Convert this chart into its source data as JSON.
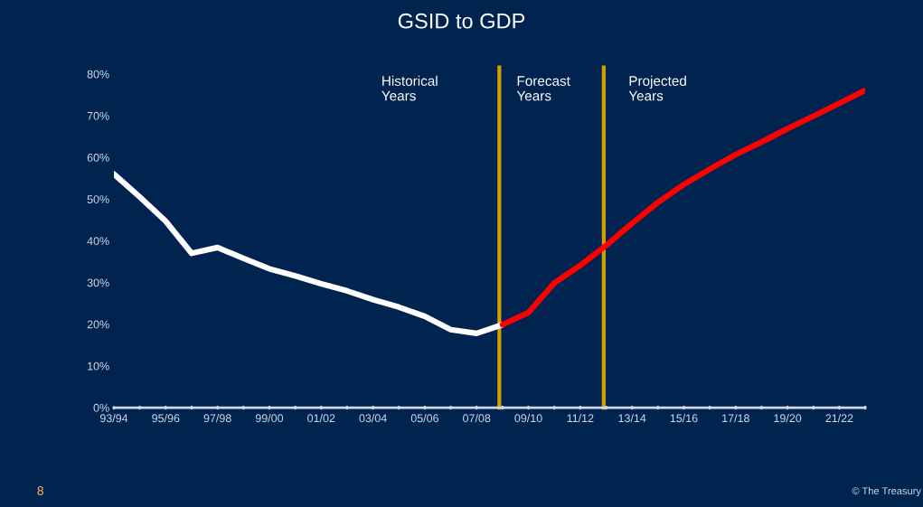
{
  "chart_data": {
    "type": "line",
    "title": "GSID to GDP",
    "categories": [
      "93/94",
      null,
      "95/96",
      null,
      "97/98",
      null,
      "99/00",
      null,
      "01/02",
      null,
      "03/04",
      null,
      "05/06",
      null,
      "07/08",
      null,
      "09/10",
      null,
      "11/12",
      null,
      "13/14",
      null,
      "15/16",
      null,
      "17/18",
      null,
      "19/20",
      null,
      "21/22",
      null
    ],
    "series": [
      {
        "color": "#ffffff",
        "values": [
          56,
          50.5,
          44.7,
          37,
          38.4,
          35.8,
          33.3,
          31.6,
          29.7,
          28,
          25.9,
          24.1,
          21.9,
          18.7,
          17.8,
          19.9,
          null,
          null,
          null,
          null,
          null,
          null,
          null,
          null,
          null,
          null,
          null,
          null,
          null,
          null
        ]
      },
      {
        "color": "#ff0000",
        "values": [
          null,
          null,
          null,
          null,
          null,
          null,
          null,
          null,
          null,
          null,
          null,
          null,
          null,
          null,
          null,
          19.9,
          22.8,
          29.9,
          34.1,
          38.9,
          44.2,
          49.2,
          53.5,
          57.2,
          60.7,
          63.7,
          66.9,
          69.9,
          73,
          76.1
        ]
      }
    ],
    "ylim": [
      0,
      80
    ],
    "yticks": [
      {
        "value": 0,
        "label": "0%"
      },
      {
        "value": 10,
        "label": "10%"
      },
      {
        "value": 20,
        "label": "20%"
      },
      {
        "value": 30,
        "label": "30%"
      },
      {
        "value": 40,
        "label": "40%"
      },
      {
        "value": 50,
        "label": "50%"
      },
      {
        "value": 60,
        "label": "60%"
      },
      {
        "value": 70,
        "label": "70%"
      },
      {
        "value": 80,
        "label": "80%"
      }
    ],
    "annotations": [
      "Historical\nYears",
      "Forecast\nYears",
      "Projected\nYears",
      "8",
      "© The Treasury"
    ],
    "grid": false,
    "legend": false,
    "marker": "none",
    "line_style": "solid"
  }
}
